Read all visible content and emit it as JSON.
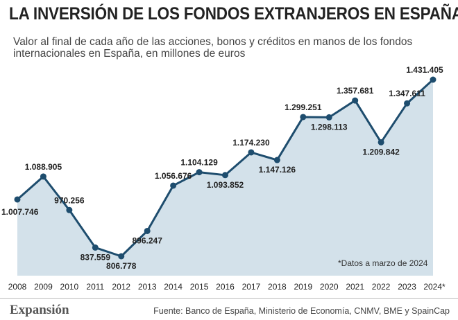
{
  "title": "LA INVERSIÓN DE LOS FONDOS EXTRANJEROS EN ESPAÑA",
  "subtitle": "Valor al final de cada año de las acciones, bonos y créditos en manos de los fondos internacionales en España, en millones de euros",
  "note": "*Datos a marzo de 2024",
  "brand": "Expansión",
  "source": "Fuente: Banco de España, Ministerio de Economía, CNMV, BME y SpainCap",
  "colors": {
    "line": "#1e4d6e",
    "area": "#d3e1ea",
    "point": "#1e4d6e"
  },
  "chart_data": {
    "type": "area",
    "categories": [
      "2008",
      "2009",
      "2010",
      "2011",
      "2012",
      "2013",
      "2014",
      "2015",
      "2016",
      "2017",
      "2018",
      "2019",
      "2020",
      "2021",
      "2022",
      "2023",
      "2024*"
    ],
    "values": [
      1007746,
      1088905,
      970256,
      837559,
      806778,
      896247,
      1056676,
      1104129,
      1093852,
      1174230,
      1147126,
      1299251,
      1298113,
      1357681,
      1209842,
      1347611,
      1431405
    ],
    "value_labels": [
      "1.007.746",
      "1.088.905",
      "970.256",
      "837.559",
      "806.778",
      "896.247",
      "1.056.676",
      "1.104.129",
      "1.093.852",
      "1.174.230",
      "1.147.126",
      "1.299.251",
      "1.298.113",
      "1.357.681",
      "1.209.842",
      "1.347.611",
      "1.431.405"
    ],
    "label_positions": [
      "below",
      "above",
      "above",
      "below",
      "below",
      "below",
      "above",
      "above",
      "below",
      "above",
      "below",
      "above",
      "below",
      "above",
      "below",
      "above",
      "above"
    ],
    "ylim": [
      500000,
      1500000
    ],
    "grid": false,
    "legend": "none"
  }
}
